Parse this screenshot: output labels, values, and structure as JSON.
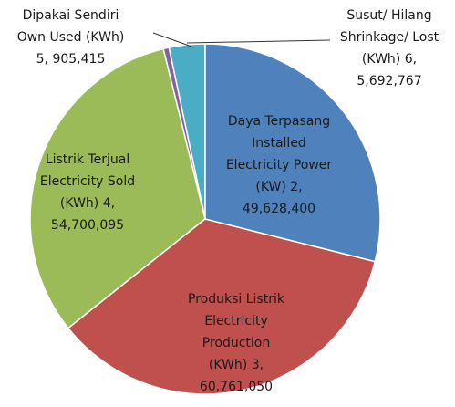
{
  "chart_data": {
    "type": "pie",
    "categories": [
      "Daya Terpasang Installed Electricity Power (KW) 2,",
      "Produksi Listrik Electricity Production (KWh) 3,",
      "Listrik Terjual Electricity Sold (KWh) 4,",
      "Dipakai Sendiri Own Used (KWh) 5,",
      "Susut/ Hilang Shrinkage/ Lost (KWh) 6,"
    ],
    "values": [
      49628400,
      60761050,
      54700095,
      905415,
      5692767
    ],
    "value_labels": [
      "49,628,400",
      "60,761,050",
      "54,700,095",
      "905,415",
      "5,692,767"
    ],
    "colors": [
      "#4f81bd",
      "#c0504d",
      "#9bbb59",
      "#8064a2",
      "#4bacc6"
    ]
  }
}
